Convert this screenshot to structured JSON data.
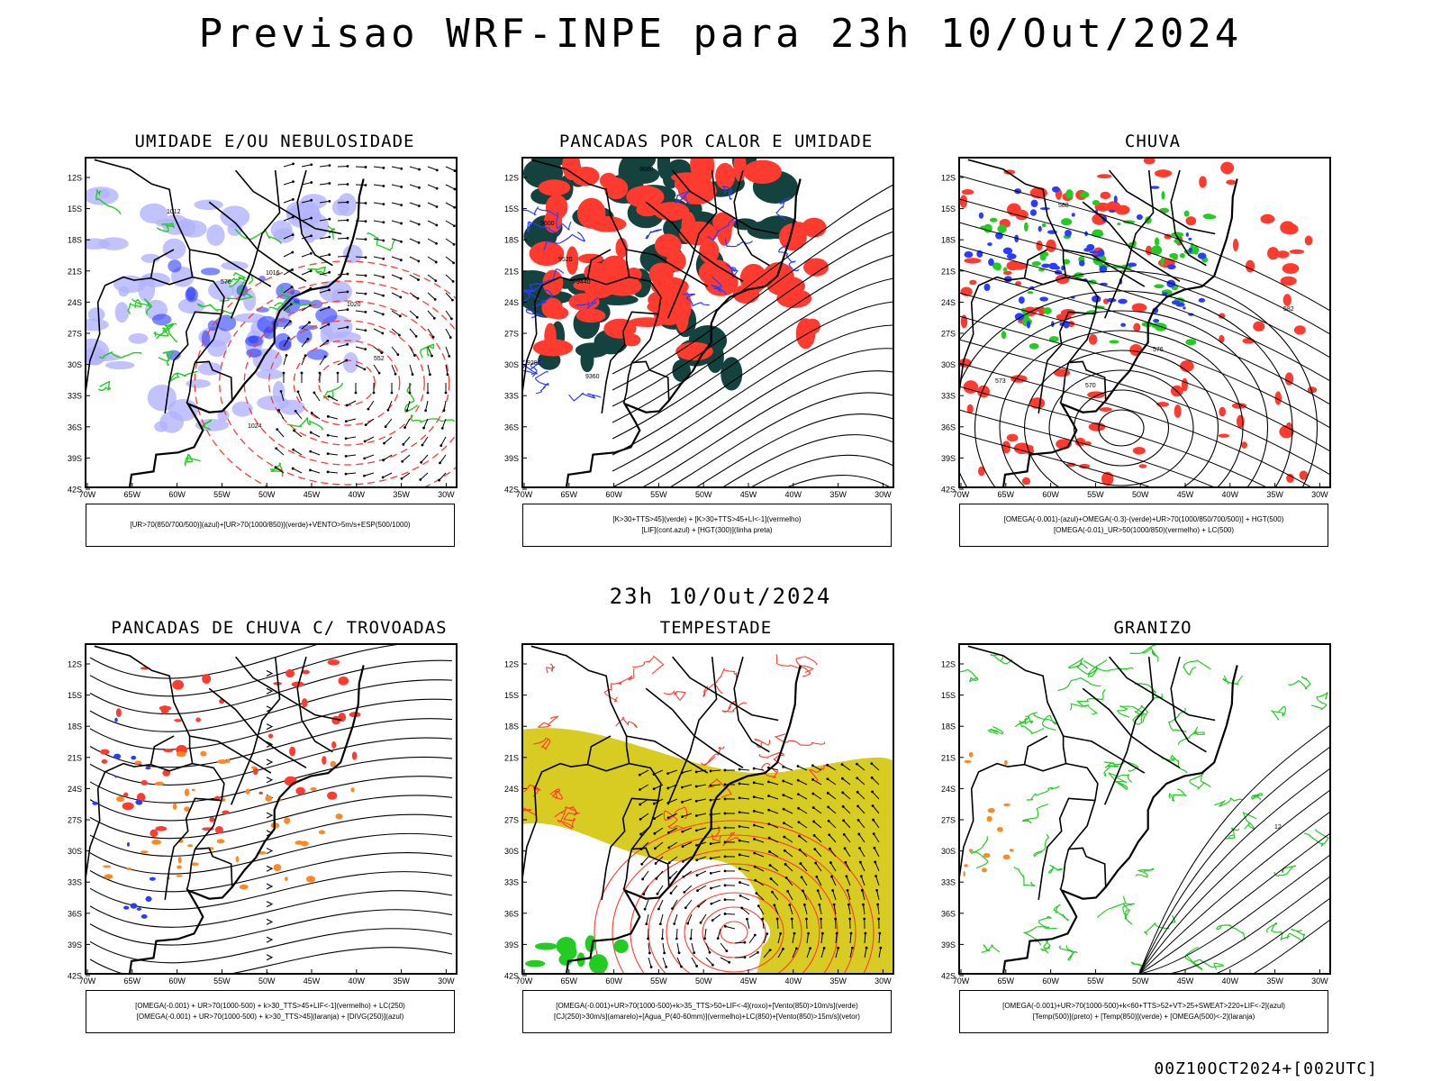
{
  "title": "Previsao WRF-INPE  para 23h 10/Out/2024",
  "subtitle": "23h 10/Out/2024",
  "footer": "00Z10OCT2024+[002UTC]",
  "axes": {
    "lat_labels": [
      "12S",
      "15S",
      "18S",
      "21S",
      "24S",
      "27S",
      "30S",
      "33S",
      "36S",
      "39S",
      "42S"
    ],
    "lon_labels": [
      "70W",
      "65W",
      "60W",
      "55W",
      "50W",
      "45W",
      "40W",
      "35W",
      "30W"
    ]
  },
  "colors": {
    "blue": "#2a3cff",
    "lavender": "#b3b3ff",
    "green": "#22cc22",
    "red": "#ff3b30",
    "dark_teal": "#14433f",
    "orange": "#ff8822",
    "yellow": "#d8cc22",
    "black": "#000000"
  },
  "panels": [
    {
      "id": "umidade",
      "title": "UMIDADE E/OU NEBULOSIDADE",
      "legend": [
        "[UR>70(850/700/500)](azul)+[UR>70(1000/850)](verde)+VENTO>5m/s+ESP(500/1000)"
      ],
      "labels": [
        "1012",
        "1016",
        "1020",
        "1024",
        "576",
        "552"
      ]
    },
    {
      "id": "pancadas-calor",
      "title": "PANCADAS POR CALOR E UMIDADE",
      "legend": [
        "[K>30+TTS>45](verde) + [K>30+TTS>45+LI<-1](vermelho)",
        "[LIF](cont.azul) + [HGT(300)](linha preta)"
      ],
      "labels": [
        "9680",
        "9600",
        "9520",
        "9440",
        "9360",
        "9280"
      ]
    },
    {
      "id": "chuva",
      "title": "CHUVA",
      "legend": [
        "[OMEGA(-0.001)-(azul)+OMEGA(-0.3)-(verde)+UR>70(1000/850/700/500)] + HGT(500)",
        "[OMEGA(-0.01)_UR>50(1000/850)(vermelho) + LC(500)"
      ],
      "labels": [
        "588",
        "582",
        "576",
        "570",
        "573"
      ]
    },
    {
      "id": "trovoadas",
      "title": "PANCADAS DE CHUVA C/ TROVOADAS",
      "legend": [
        "[OMEGA(-0.001) + UR>70(1000-500) + k>30_TTS>45+LIF<-1](vermelho) + LC(250)",
        "[OMEGA(-0.001) + UR>70(1000-500) + k>30_TTS>45](laranja) + [DIVG(250)](azul)"
      ],
      "labels": []
    },
    {
      "id": "tempestade",
      "title": "TEMPESTADE",
      "legend": [
        "[OMEGA(-0.001)+UR>70(1000-500)+k>35_TTS>50+LIF<-4](roxo)+[Vento(850)>10m/s](verde)",
        "[CJ(250)>30m/s](amarelo)+[Agua_P(40-60mm)](vermelho)+LC(850)+[Vento(850)>15m/s](vetor)"
      ],
      "labels": []
    },
    {
      "id": "granizo",
      "title": "GRANIZO",
      "legend": [
        "[OMEGA(-0.001)+UR>70(1000-500)+k<60+TTS>52+VT>25+SWEAT>220+LIF<-2](azul)",
        "[Temp(500)](preto) + [Temp(850)](verde) + [OMEGA(500)<-2](laranja)"
      ],
      "labels": [
        "12"
      ]
    }
  ]
}
